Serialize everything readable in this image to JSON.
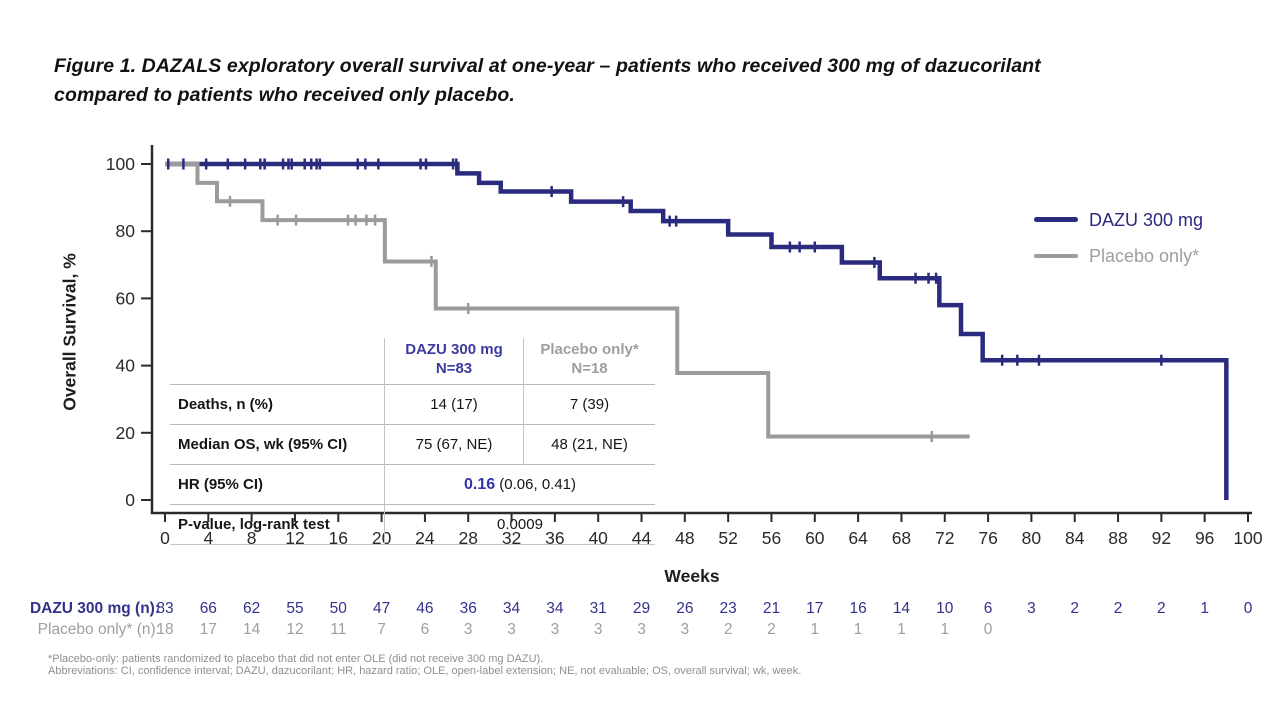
{
  "figure": {
    "title_line1": "Figure 1. DAZALS exploratory overall survival at one-year – patients who received 300 mg of dazucorilant",
    "title_line2": "compared to patients who received only placebo."
  },
  "colors": {
    "dazu": "#2a2a7e",
    "dazu_text": "#3b3b9e",
    "dazu_risk": "#32328c",
    "dazu_accent": "#3434ad",
    "placebo": "#9b9b9b",
    "placebo_text": "#9e9e9e",
    "axis": "#2b2b2b",
    "tick_label": "#2a2a2a",
    "footnote": "#8f8f8f"
  },
  "chart_data": {
    "type": "line",
    "subtype": "kaplan-meier-step",
    "title": "",
    "xlabel": "Weeks",
    "ylabel": "Overall Survival, %",
    "xlim": [
      0,
      100
    ],
    "ylim": [
      0,
      100
    ],
    "xticks": [
      0,
      4,
      8,
      12,
      16,
      20,
      24,
      28,
      32,
      36,
      40,
      44,
      48,
      52,
      56,
      60,
      64,
      68,
      72,
      76,
      80,
      84,
      88,
      92,
      96,
      100
    ],
    "yticks": [
      0,
      20,
      40,
      60,
      80,
      100
    ],
    "grid": false,
    "legend_position": "right-inside",
    "series": [
      {
        "name": "DAZU 300 mg",
        "color_key": "dazu",
        "n": 83,
        "start": [
          0,
          100
        ],
        "drops": [
          [
            27,
            97.2
          ],
          [
            29,
            94.4
          ],
          [
            31,
            91.8
          ],
          [
            37.5,
            88.8
          ],
          [
            43,
            86
          ],
          [
            46,
            83
          ],
          [
            52,
            79
          ],
          [
            56,
            75.3
          ],
          [
            62.5,
            70.7
          ],
          [
            66,
            66
          ],
          [
            71.5,
            58
          ],
          [
            73.5,
            49.4
          ],
          [
            75.5,
            41.6
          ],
          [
            98,
            0
          ]
        ],
        "end_week": 98,
        "censors": [
          [
            0.3,
            100
          ],
          [
            1.7,
            100
          ],
          [
            3.8,
            100
          ],
          [
            5.8,
            100
          ],
          [
            7.4,
            100
          ],
          [
            8.8,
            100
          ],
          [
            9.2,
            100
          ],
          [
            10.9,
            100
          ],
          [
            11.4,
            100
          ],
          [
            11.7,
            100
          ],
          [
            12.9,
            100
          ],
          [
            13.5,
            100
          ],
          [
            14,
            100
          ],
          [
            14.3,
            100
          ],
          [
            17.8,
            100
          ],
          [
            18.5,
            100
          ],
          [
            19.7,
            100
          ],
          [
            23.6,
            100
          ],
          [
            24.1,
            100
          ],
          [
            26.6,
            100
          ],
          [
            26.9,
            100
          ],
          [
            35.7,
            91.8
          ],
          [
            42.3,
            88.8
          ],
          [
            46.6,
            83
          ],
          [
            47.2,
            83
          ],
          [
            57.7,
            75.3
          ],
          [
            58.6,
            75.3
          ],
          [
            60,
            75.3
          ],
          [
            65.5,
            70.7
          ],
          [
            69.3,
            66
          ],
          [
            70.5,
            66
          ],
          [
            71.2,
            66
          ],
          [
            77.3,
            41.6
          ],
          [
            78.7,
            41.6
          ],
          [
            80.7,
            41.6
          ],
          [
            92,
            41.6
          ]
        ]
      },
      {
        "name": "Placebo only*",
        "color_key": "placebo",
        "n": 18,
        "start": [
          0,
          100
        ],
        "drops": [
          [
            3,
            94.4
          ],
          [
            4.8,
            88.9
          ],
          [
            9,
            83.3
          ],
          [
            20.3,
            71
          ],
          [
            25,
            57
          ],
          [
            47.3,
            37.8
          ],
          [
            55.7,
            18.9
          ]
        ],
        "end_week": 74.3,
        "censors": [
          [
            6,
            88.9
          ],
          [
            10.4,
            83.3
          ],
          [
            12.1,
            83.3
          ],
          [
            16.9,
            83.3
          ],
          [
            17.6,
            83.3
          ],
          [
            18.6,
            83.3
          ],
          [
            19.4,
            83.3
          ],
          [
            24.6,
            71
          ],
          [
            28,
            57
          ],
          [
            70.8,
            18.9
          ]
        ]
      }
    ]
  },
  "legend": {
    "items": [
      {
        "label": "DAZU 300 mg",
        "color_key": "dazu"
      },
      {
        "label": "Placebo only*",
        "color_key": "placebo"
      }
    ]
  },
  "stats_table": {
    "headers": [
      {
        "line1": "DAZU 300 mg",
        "line2": "N=83",
        "color_key": "dazu_text"
      },
      {
        "line1": "Placebo only*",
        "line2": "N=18",
        "color_key": "placebo_text"
      }
    ],
    "rows": [
      {
        "label": "Deaths, n (%)",
        "dazu": "14 (17)",
        "placebo": "7 (39)"
      },
      {
        "label": "Median OS, wk (95% CI)",
        "dazu": "75 (67, NE)",
        "placebo": "48 (21, NE)"
      }
    ],
    "hr_row": {
      "label": "HR (95% CI)",
      "value_strong": "0.16",
      "value_rest": " (0.06, 0.41)"
    },
    "p_row": {
      "label": "P-value, log-rank test",
      "value": "0.0009"
    }
  },
  "risk_table": {
    "weeks": [
      0,
      4,
      8,
      12,
      16,
      20,
      24,
      28,
      32,
      36,
      40,
      44,
      48,
      52,
      56,
      60,
      64,
      68,
      72,
      76,
      80,
      84,
      88,
      92,
      96,
      100
    ],
    "rows": [
      {
        "label": "DAZU 300 mg (n):",
        "color_key": "dazu_risk",
        "bold_label": true,
        "values": [
          "83",
          "66",
          "62",
          "55",
          "50",
          "47",
          "46",
          "36",
          "34",
          "34",
          "31",
          "29",
          "26",
          "23",
          "21",
          "17",
          "16",
          "14",
          "10",
          "6",
          "3",
          "2",
          "2",
          "2",
          "1",
          "0"
        ]
      },
      {
        "label": "Placebo only* (n):",
        "color_key": "placebo_text",
        "bold_label": false,
        "values": [
          "18",
          "17",
          "14",
          "12",
          "11",
          "7",
          "6",
          "3",
          "3",
          "3",
          "3",
          "3",
          "3",
          "2",
          "2",
          "1",
          "1",
          "1",
          "1",
          "0"
        ]
      }
    ]
  },
  "footnotes": [
    "*Placebo-only: patients randomized to placebo that did not enter OLE (did not receive 300 mg DAZU).",
    "Abbreviations: CI, confidence interval; DAZU, dazucorilant; HR, hazard ratio; OLE, open-label extension; NE, not evaluable; OS, overall survival; wk, week."
  ]
}
